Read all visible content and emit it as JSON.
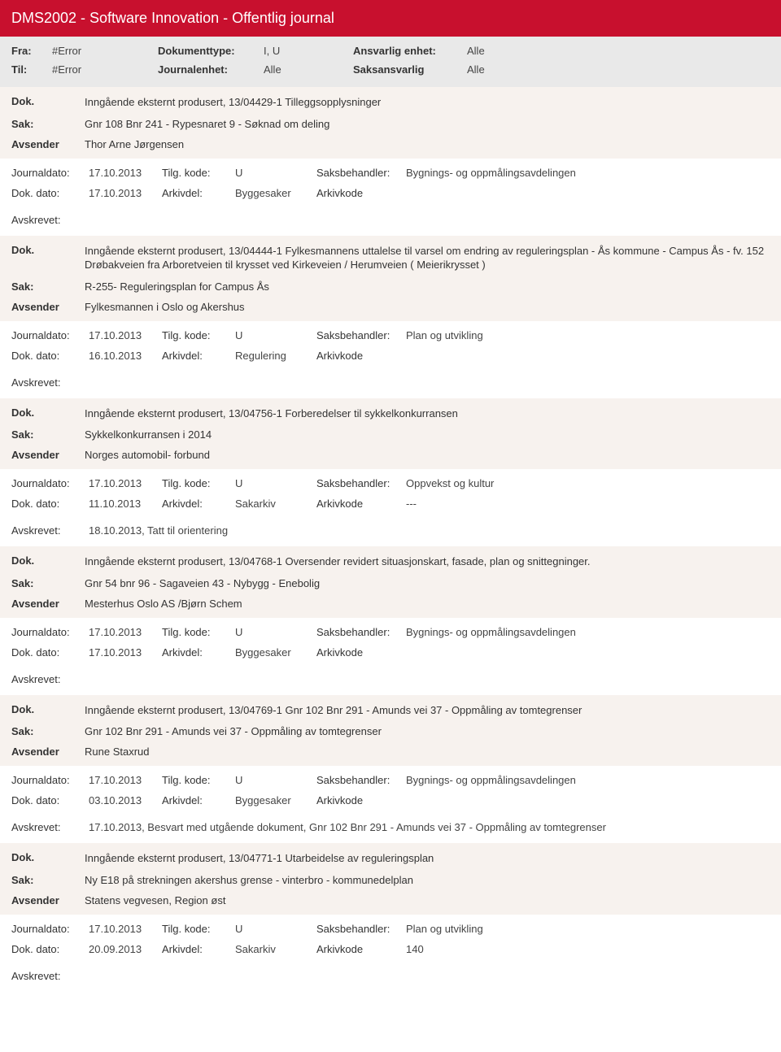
{
  "header": {
    "title": "DMS2002 - Software Innovation - Offentlig journal"
  },
  "filters": {
    "fra_label": "Fra:",
    "fra_value": "#Error",
    "til_label": "Til:",
    "til_value": "#Error",
    "doktype_label": "Dokumenttype:",
    "doktype_value": "I, U",
    "journalenhet_label": "Journalenhet:",
    "journalenhet_value": "Alle",
    "ansvarlig_label": "Ansvarlig enhet:",
    "ansvarlig_value": "Alle",
    "saksansvarlig_label": "Saksansvarlig",
    "saksansvarlig_value": "Alle"
  },
  "labels": {
    "dok": "Dok.",
    "sak": "Sak:",
    "avsender": "Avsender",
    "journaldato": "Journaldato:",
    "dokdato": "Dok. dato:",
    "tilgkode": "Tilg. kode:",
    "arkivdel": "Arkivdel:",
    "saksbehandler": "Saksbehandler:",
    "arkivkode": "Arkivkode",
    "avskrevet": "Avskrevet:"
  },
  "entries": [
    {
      "dok": "Inngående eksternt produsert, 13/04429-1 Tilleggsopplysninger",
      "sak": "Gnr 108 Bnr 241 - Rypesnaret 9 - Søknad om deling",
      "avsender": "Thor Arne Jørgensen",
      "journaldato": "17.10.2013",
      "dokdato": "17.10.2013",
      "tilgkode": "U",
      "arkivdel": "Byggesaker",
      "saksbehandler": "Bygnings- og oppmålingsavdelingen",
      "arkivkode": "",
      "avskrevet": ""
    },
    {
      "dok": "Inngående eksternt produsert, 13/04444-1 Fylkesmannens uttalelse til varsel om endring av reguleringsplan - Ås kommune - Campus Ås -  fv. 152 Drøbakveien fra Arboretveien til krysset ved Kirkeveien / Herumveien ( Meierikrysset )",
      "sak": "R-255- Reguleringsplan for Campus Ås",
      "avsender": "Fylkesmannen i Oslo og Akershus",
      "journaldato": "17.10.2013",
      "dokdato": "16.10.2013",
      "tilgkode": "U",
      "arkivdel": "Regulering",
      "saksbehandler": "Plan og utvikling",
      "arkivkode": "",
      "avskrevet": ""
    },
    {
      "dok": "Inngående eksternt produsert, 13/04756-1 Forberedelser til sykkelkonkurransen",
      "sak": "Sykkelkonkurransen i 2014",
      "avsender": "Norges automobil- forbund",
      "journaldato": "17.10.2013",
      "dokdato": "11.10.2013",
      "tilgkode": "U",
      "arkivdel": "Sakarkiv",
      "saksbehandler": "Oppvekst og kultur",
      "arkivkode": "---",
      "avskrevet": "18.10.2013, Tatt til orientering"
    },
    {
      "dok": "Inngående eksternt produsert, 13/04768-1 Oversender revidert situasjonskart, fasade, plan og snittegninger.",
      "sak": "Gnr 54 bnr 96 - Sagaveien 43 - Nybygg - Enebolig",
      "avsender": "Mesterhus Oslo AS /Bjørn Schem",
      "journaldato": "17.10.2013",
      "dokdato": "17.10.2013",
      "tilgkode": "U",
      "arkivdel": "Byggesaker",
      "saksbehandler": "Bygnings- og oppmålingsavdelingen",
      "arkivkode": "",
      "avskrevet": ""
    },
    {
      "dok": "Inngående eksternt produsert, 13/04769-1 Gnr 102 Bnr 291 - Amunds vei 37 - Oppmåling av tomtegrenser",
      "sak": "Gnr 102 Bnr 291 - Amunds vei 37 - Oppmåling av tomtegrenser",
      "avsender": "Rune Staxrud",
      "journaldato": "17.10.2013",
      "dokdato": "03.10.2013",
      "tilgkode": "U",
      "arkivdel": "Byggesaker",
      "saksbehandler": "Bygnings- og oppmålingsavdelingen",
      "arkivkode": "",
      "avskrevet": "17.10.2013, Besvart med utgående dokument, Gnr 102 Bnr 291 - Amunds vei 37 - Oppmåling av tomtegrenser"
    },
    {
      "dok": "Inngående eksternt produsert, 13/04771-1 Utarbeidelse av reguleringsplan",
      "sak": "Ny E18 på strekningen akershus grense - vinterbro - kommunedelplan",
      "avsender": "Statens vegvesen, Region øst",
      "journaldato": "17.10.2013",
      "dokdato": "20.09.2013",
      "tilgkode": "U",
      "arkivdel": "Sakarkiv",
      "saksbehandler": "Plan og utvikling",
      "arkivkode": "140",
      "avskrevet": ""
    }
  ],
  "style": {
    "header_bg": "#c8102e",
    "header_color": "#ffffff",
    "filter_bg": "#e9e9e9",
    "entry_top_bg": "#f7f2ee",
    "body_font": "Segoe UI, Arial, sans-serif"
  }
}
